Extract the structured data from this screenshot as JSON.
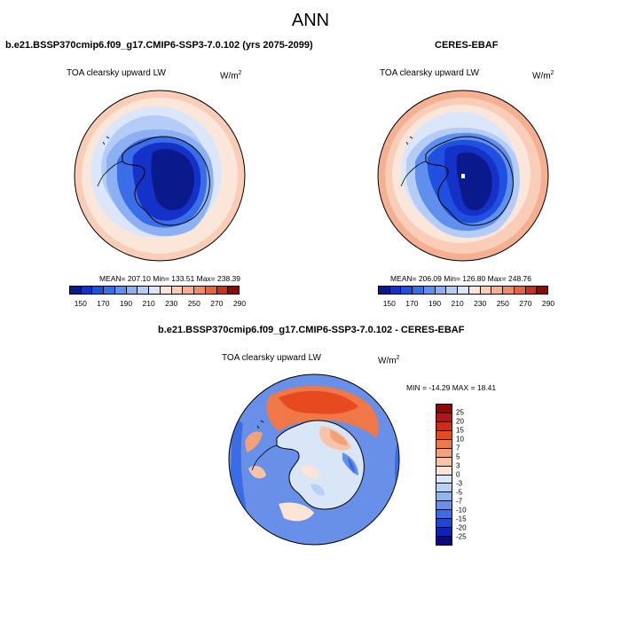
{
  "title": "ANN",
  "panels": {
    "model": {
      "title": "b.e21.BSSP370cmip6.f09_g17.CMIP6-SSP3-7.0.102 (yrs 2075-2099)",
      "variable": "TOA clearsky upward LW",
      "units_base": "W/m",
      "units_exp": "2",
      "stats": "MEAN= 207.10  Min= 133.51  Max= 238.39"
    },
    "obs": {
      "title": "CERES-EBAF",
      "variable": "TOA clearsky upward LW",
      "units_base": "W/m",
      "units_exp": "2",
      "stats": "MEAN= 206.09  Min= 126.80  Max= 248.76"
    },
    "diff": {
      "title": "b.e21.BSSP370cmip6.f09_g17.CMIP6-SSP3-7.0.102 - CERES-EBAF",
      "variable": "TOA clearsky upward LW",
      "units_base": "W/m",
      "units_exp": "2",
      "stats": "MIN = -14.29 MAX =  18.41"
    }
  },
  "colorbar_abs": {
    "colors": [
      "#0a1a8c",
      "#1432c8",
      "#2050e0",
      "#3a6ee8",
      "#6090ee",
      "#8cb0f2",
      "#b4ccf6",
      "#dce6fa",
      "#fbe6da",
      "#f9cdb8",
      "#f5b092",
      "#ee8c6a",
      "#e46444",
      "#cc3020",
      "#8c0a0a"
    ],
    "labels": [
      "150",
      "170",
      "190",
      "210",
      "230",
      "250",
      "270",
      "290"
    ]
  },
  "colorbar_diff": {
    "colors": [
      "#8c0a0a",
      "#b01818",
      "#d02a18",
      "#e84a20",
      "#f07848",
      "#f4a078",
      "#f8c4a8",
      "#fce4d6",
      "#d8e6f8",
      "#b8d0f4",
      "#90b4ee",
      "#6890e8",
      "#3c6ce4",
      "#1c48d8",
      "#0c22b8",
      "#0a0a80"
    ],
    "labels": [
      "25",
      "20",
      "15",
      "10",
      "7",
      "5",
      "3",
      "0",
      "-3",
      "-5",
      "-7",
      "-10",
      "-15",
      "-20",
      "-25"
    ]
  }
}
